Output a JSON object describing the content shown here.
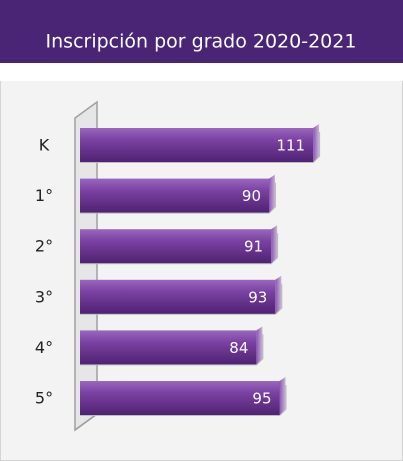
{
  "chart_data": {
    "type": "bar",
    "orientation": "horizontal",
    "title": "Inscripción por grado 2020-2021",
    "categories": [
      "K",
      "1°",
      "2°",
      "3°",
      "4°",
      "5°"
    ],
    "values": [
      111,
      90,
      91,
      93,
      84,
      95
    ],
    "color": "#6f3596"
  }
}
